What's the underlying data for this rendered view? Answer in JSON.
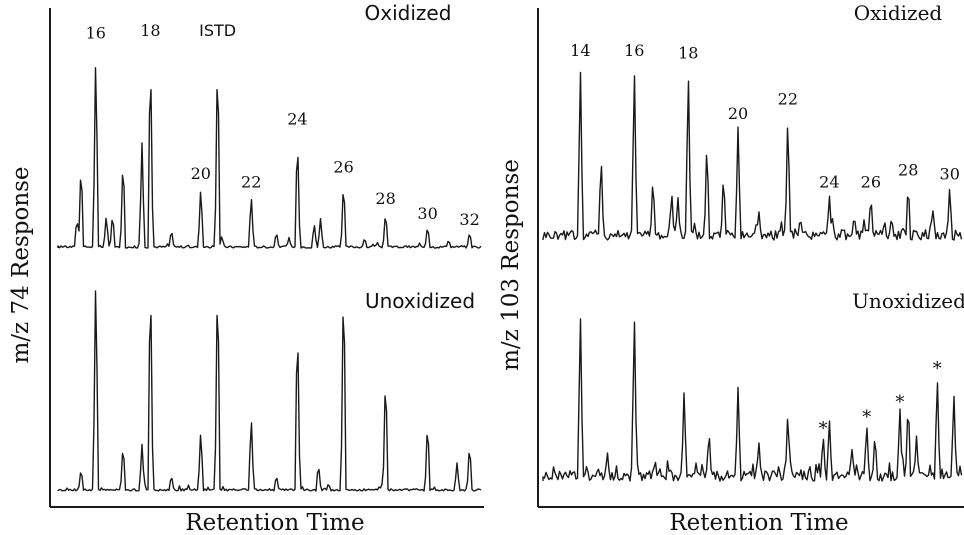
{
  "chart_data": [
    {
      "type": "line",
      "ylabel": "m/z 74 Response",
      "xlabel": "Retention Time",
      "grid": false,
      "series": [
        {
          "name": "Oxidized",
          "baseline_noise": "low",
          "labeled_peaks": [
            {
              "label": "16",
              "rt": 0.09,
              "height": 0.97
            },
            {
              "label": "18",
              "rt": 0.22,
              "height": 0.98
            },
            {
              "label": "ISTD",
              "rt": 0.38,
              "height": 0.98
            },
            {
              "label": "20",
              "rt": 0.34,
              "height": 0.3
            },
            {
              "label": "22",
              "rt": 0.46,
              "height": 0.26
            },
            {
              "label": "24",
              "rt": 0.57,
              "height": 0.56
            },
            {
              "label": "26",
              "rt": 0.68,
              "height": 0.33
            },
            {
              "label": "28",
              "rt": 0.78,
              "height": 0.18
            },
            {
              "label": "30",
              "rt": 0.88,
              "height": 0.11
            },
            {
              "label": "32",
              "rt": 0.98,
              "height": 0.08
            }
          ],
          "minor_peaks": [
            {
              "rt": 0.055,
              "height": 0.42
            },
            {
              "rt": 0.045,
              "height": 0.15
            },
            {
              "rt": 0.115,
              "height": 0.16
            },
            {
              "rt": 0.13,
              "height": 0.17
            },
            {
              "rt": 0.155,
              "height": 0.45
            },
            {
              "rt": 0.2,
              "height": 0.5
            },
            {
              "rt": 0.27,
              "height": 0.09
            },
            {
              "rt": 0.39,
              "height": 0.06
            },
            {
              "rt": 0.52,
              "height": 0.08
            },
            {
              "rt": 0.55,
              "height": 0.05
            },
            {
              "rt": 0.61,
              "height": 0.12
            },
            {
              "rt": 0.625,
              "height": 0.14
            },
            {
              "rt": 0.73,
              "height": 0.05
            },
            {
              "rt": 0.93,
              "height": 0.04
            }
          ]
        },
        {
          "name": "Unoxidized",
          "baseline_noise": "low",
          "labeled_peaks": [],
          "minor_peaks": [
            {
              "rt": 0.09,
              "height": 0.97
            },
            {
              "rt": 0.22,
              "height": 0.98
            },
            {
              "rt": 0.38,
              "height": 0.98
            },
            {
              "rt": 0.34,
              "height": 0.27
            },
            {
              "rt": 0.46,
              "height": 0.33
            },
            {
              "rt": 0.57,
              "height": 0.77
            },
            {
              "rt": 0.68,
              "height": 0.97
            },
            {
              "rt": 0.78,
              "height": 0.53
            },
            {
              "rt": 0.88,
              "height": 0.31
            },
            {
              "rt": 0.98,
              "height": 0.21
            },
            {
              "rt": 0.055,
              "height": 0.1
            },
            {
              "rt": 0.155,
              "height": 0.21
            },
            {
              "rt": 0.2,
              "height": 0.2
            },
            {
              "rt": 0.27,
              "height": 0.07
            },
            {
              "rt": 0.52,
              "height": 0.07
            },
            {
              "rt": 0.62,
              "height": 0.12
            },
            {
              "rt": 0.95,
              "height": 0.12
            }
          ]
        }
      ]
    },
    {
      "type": "line",
      "ylabel": "m/z 103 Response",
      "xlabel": "Retention Time",
      "grid": false,
      "series": [
        {
          "name": "Oxidized",
          "baseline_noise": "high",
          "labeled_peaks": [
            {
              "label": "14",
              "rt": 0.09,
              "height": 0.88
            },
            {
              "label": "16",
              "rt": 0.22,
              "height": 0.88
            },
            {
              "label": "18",
              "rt": 0.35,
              "height": 0.87
            },
            {
              "label": "20",
              "rt": 0.47,
              "height": 0.57
            },
            {
              "label": "22",
              "rt": 0.59,
              "height": 0.64
            },
            {
              "label": "24",
              "rt": 0.69,
              "height": 0.23
            },
            {
              "label": "26",
              "rt": 0.79,
              "height": 0.23
            },
            {
              "label": "28",
              "rt": 0.88,
              "height": 0.29
            },
            {
              "label": "30",
              "rt": 0.98,
              "height": 0.27
            }
          ],
          "minor_peaks": [
            {
              "rt": 0.14,
              "height": 0.43
            },
            {
              "rt": 0.265,
              "height": 0.32
            },
            {
              "rt": 0.31,
              "height": 0.25
            },
            {
              "rt": 0.325,
              "height": 0.22
            },
            {
              "rt": 0.395,
              "height": 0.5
            },
            {
              "rt": 0.435,
              "height": 0.34
            },
            {
              "rt": 0.52,
              "height": 0.15
            },
            {
              "rt": 0.62,
              "height": 0.12
            },
            {
              "rt": 0.75,
              "height": 0.13
            },
            {
              "rt": 0.84,
              "height": 0.12
            },
            {
              "rt": 0.94,
              "height": 0.15
            }
          ]
        },
        {
          "name": "Unoxidized",
          "baseline_noise": "high",
          "labeled_peaks": [
            {
              "label": "*",
              "rt": 0.675,
              "height": 0.26
            },
            {
              "label": "*",
              "rt": 0.78,
              "height": 0.32
            },
            {
              "label": "*",
              "rt": 0.86,
              "height": 0.4
            },
            {
              "label": "*",
              "rt": 0.95,
              "height": 0.58
            }
          ],
          "minor_peaks": [
            {
              "rt": 0.09,
              "height": 0.92
            },
            {
              "rt": 0.22,
              "height": 0.92
            },
            {
              "rt": 0.34,
              "height": 0.49
            },
            {
              "rt": 0.47,
              "height": 0.51
            },
            {
              "rt": 0.59,
              "height": 0.38
            },
            {
              "rt": 0.4,
              "height": 0.28
            },
            {
              "rt": 0.52,
              "height": 0.22
            },
            {
              "rt": 0.69,
              "height": 0.34
            },
            {
              "rt": 0.745,
              "height": 0.18
            },
            {
              "rt": 0.8,
              "height": 0.26
            },
            {
              "rt": 0.88,
              "height": 0.45
            },
            {
              "rt": 0.9,
              "height": 0.24
            },
            {
              "rt": 0.99,
              "height": 0.48
            },
            {
              "rt": 0.155,
              "height": 0.16
            },
            {
              "rt": 0.27,
              "height": 0.12
            }
          ]
        }
      ]
    }
  ]
}
